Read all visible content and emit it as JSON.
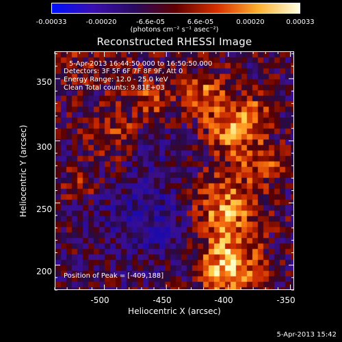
{
  "colorbar": {
    "ticks": [
      "-0.00033",
      "-0.00020",
      "-6.6e-05",
      "6.6e-05",
      "0.00020",
      "0.00033"
    ],
    "unit": "(photons cm⁻² s⁻¹ asec⁻²)",
    "colors": [
      "#0010ff",
      "#3a0fb0",
      "#2a0a60",
      "#600000",
      "#d83000",
      "#ffb030",
      "#ffffe0"
    ]
  },
  "title": "Reconstructed RHESSI Image",
  "annotations": {
    "time_range": "5-Apr-2013 16:44:50.000 to 16:50:50.000",
    "detectors": "Detectors: 3F 5F 6F 7F 8F 9F, Att 0",
    "energy": "Energy Range: 12.0 - 25.0 keV",
    "clean": "Clean    Total counts: 9.81E+03",
    "peak": "Position of Peak = [-409,188]"
  },
  "axes": {
    "xlabel": "Heliocentric X (arcsec)",
    "ylabel": "Heliocentric Y (arcsec)",
    "xticks": [
      -500,
      -450,
      -400,
      -350
    ],
    "yticks": [
      200,
      250,
      300,
      350
    ],
    "xlim": [
      -540,
      -347
    ],
    "ylim": [
      180,
      372
    ]
  },
  "timestamp": "5-Apr-2013 15:42"
}
